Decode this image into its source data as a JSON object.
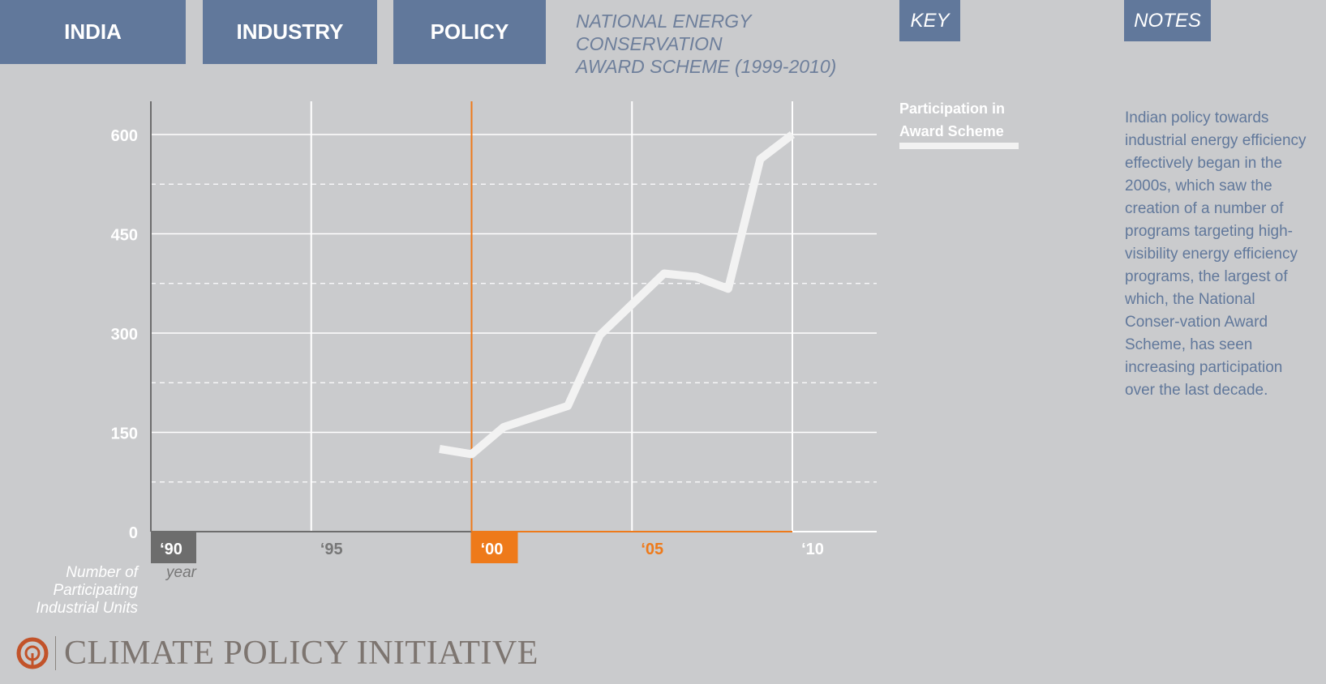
{
  "tabs": [
    {
      "label": "INDIA"
    },
    {
      "label": "INDUSTRY"
    },
    {
      "label": "POLICY"
    }
  ],
  "subtitle_line1": "NATIONAL ENERGY CONSERVATION",
  "subtitle_line2": "AWARD SCHEME (1999-2010)",
  "key": {
    "label": "KEY",
    "legend_line1": "Participation in",
    "legend_line2": "Award Scheme"
  },
  "notes": {
    "label": "NOTES",
    "text": "Indian policy towards industrial energy efficiency effectively began in the 2000s, which saw the creation of a number of programs targeting high-visibility energy efficiency programs, the largest of which, the National Conser-vation Award Scheme, has seen increasing participation over the last decade."
  },
  "logo_text": "CLIMATE POLICY INITIATIVE",
  "colors": {
    "background": "#cacbcd",
    "tab": "#61789b",
    "accent_orange": "#ee7a1a",
    "series": "#f2f2f2",
    "axis_dark": "#6d6d6d"
  },
  "chart_data": {
    "type": "line",
    "series": [
      {
        "name": "Participation in Award Scheme",
        "x": [
          1999,
          2000,
          2001,
          2003,
          2004,
          2006,
          2007,
          2008,
          2009,
          2010
        ],
        "values": [
          125,
          117,
          158,
          190,
          297,
          390,
          385,
          367,
          563,
          600
        ]
      }
    ],
    "ylim": [
      0,
      650
    ],
    "xlim": [
      1990,
      2012.6
    ],
    "yticks": [
      0,
      150,
      300,
      450,
      600
    ],
    "ytick_labels": [
      "0",
      "150",
      "300",
      "450",
      "600"
    ],
    "xticks": [
      1990,
      1995,
      2000,
      2005,
      2010
    ],
    "xtick_labels": [
      "‘90",
      "‘95",
      "‘00",
      "‘05",
      "‘10"
    ],
    "highlight_year": 2000,
    "ylabel": "Number of Participating Industrial Units",
    "ylabel_lines": [
      "Number of",
      "Participating",
      "Industrial Units"
    ],
    "xlabel": "year",
    "grid": true
  }
}
